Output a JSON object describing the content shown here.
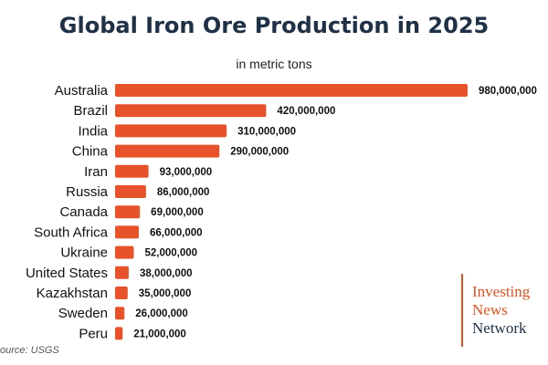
{
  "chart_data": {
    "type": "bar",
    "orientation": "horizontal",
    "title": "Global Iron Ore Production in 2025",
    "subtitle": "in metric tons",
    "categories": [
      "Australia",
      "Brazil",
      "India",
      "China",
      "Iran",
      "Russia",
      "Canada",
      "South Africa",
      "Ukraine",
      "United States",
      "Kazakhstan",
      "Sweden",
      "Peru"
    ],
    "values": [
      980000000,
      420000000,
      310000000,
      290000000,
      93000000,
      86000000,
      69000000,
      66000000,
      52000000,
      38000000,
      35000000,
      26000000,
      21000000
    ],
    "value_labels": [
      "980,000,000",
      "420,000,000",
      "310,000,000",
      "290,000,000",
      "93,000,000",
      "86,000,000",
      "69,000,000",
      "66,000,000",
      "52,000,000",
      "38,000,000",
      "35,000,000",
      "26,000,000",
      "21,000,000"
    ],
    "bar_color": "#e8522a",
    "xlim": [
      0,
      980000000
    ],
    "grid": false,
    "legend": "none"
  },
  "source": "ource: USGS",
  "logo": {
    "line1": "Investing",
    "line2": "News",
    "line3": "Network",
    "accent": "#e0521f",
    "dark": "#1f3147"
  }
}
